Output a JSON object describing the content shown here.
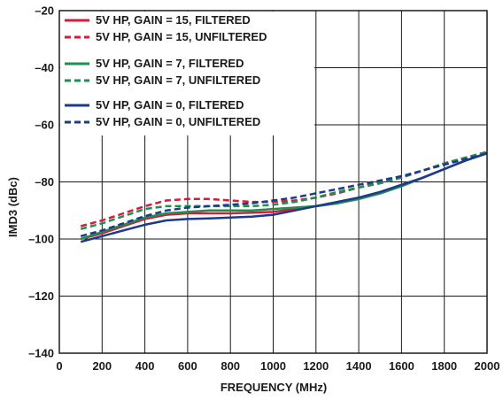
{
  "chart_data": {
    "type": "line",
    "xlabel": "FREQUENCY (MHz)",
    "ylabel": "IMD3 (dBc)",
    "xlim": [
      0,
      2000
    ],
    "ylim": [
      -140,
      -20
    ],
    "xticks": [
      0,
      200,
      400,
      600,
      800,
      1000,
      1200,
      1400,
      1600,
      1800,
      2000
    ],
    "yticks": [
      -20,
      -40,
      -60,
      -80,
      -100,
      -120,
      -140
    ],
    "grid": true,
    "legend_position": "top-left",
    "series": [
      {
        "name": "5V HP, GAIN = 15, FILTERED",
        "color": "#d7193a",
        "dashed": false,
        "x": [
          100,
          200,
          300,
          400,
          500,
          600,
          700,
          800,
          900,
          1000,
          1100,
          1200,
          1300,
          1400,
          1500,
          1600,
          1700,
          1800,
          1900,
          2000
        ],
        "y": [
          -100,
          -98,
          -95.5,
          -93,
          -91.5,
          -91,
          -91,
          -91,
          -90.8,
          -90.5,
          -89.5,
          -88.5,
          -87.5,
          -86,
          -84,
          -81.5,
          -78.5,
          -75.5,
          -72.5,
          -70
        ]
      },
      {
        "name": "5V HP, GAIN = 15, UNFILTERED",
        "color": "#d7193a",
        "dashed": true,
        "x": [
          100,
          200,
          300,
          400,
          500,
          600,
          700,
          800,
          900,
          1000,
          1100,
          1200,
          1300,
          1400,
          1500,
          1600,
          1700,
          1800,
          1900,
          2000
        ],
        "y": [
          -95.5,
          -93.5,
          -91,
          -88.5,
          -86.5,
          -86,
          -86,
          -86.5,
          -87,
          -87,
          -86.5,
          -85.5,
          -84,
          -82,
          -80,
          -78.5,
          -76,
          -73.5,
          -71.5,
          -69.5
        ]
      },
      {
        "name": "5V HP, GAIN = 7, FILTERED",
        "color": "#1e8f4e",
        "dashed": false,
        "x": [
          100,
          200,
          300,
          400,
          500,
          600,
          700,
          800,
          900,
          1000,
          1100,
          1200,
          1300,
          1400,
          1500,
          1600,
          1700,
          1800,
          1900,
          2000
        ],
        "y": [
          -100,
          -97.5,
          -95,
          -92.5,
          -91,
          -90.5,
          -90,
          -90,
          -90,
          -89.5,
          -89,
          -88.5,
          -87.5,
          -86,
          -84,
          -81.5,
          -78.5,
          -75.5,
          -72.5,
          -70
        ]
      },
      {
        "name": "5V HP, GAIN = 7, UNFILTERED",
        "color": "#1e8f4e",
        "dashed": true,
        "x": [
          100,
          200,
          300,
          400,
          500,
          600,
          700,
          800,
          900,
          1000,
          1100,
          1200,
          1300,
          1400,
          1500,
          1600,
          1700,
          1800,
          1900,
          2000
        ],
        "y": [
          -96.5,
          -94.5,
          -92,
          -89.5,
          -88.5,
          -88.5,
          -88.5,
          -88.5,
          -88.5,
          -88,
          -87,
          -85.5,
          -83.5,
          -82,
          -80.5,
          -78.5,
          -76,
          -73.5,
          -71.5,
          -69.5
        ]
      },
      {
        "name": "5V HP, GAIN = 0, FILTERED",
        "color": "#1c3a8c",
        "dashed": false,
        "x": [
          100,
          200,
          300,
          400,
          500,
          600,
          700,
          800,
          900,
          1000,
          1100,
          1200,
          1300,
          1400,
          1500,
          1600,
          1700,
          1800,
          1900,
          2000
        ],
        "y": [
          -101,
          -99,
          -97,
          -95,
          -93.5,
          -93,
          -92.8,
          -92.5,
          -92.2,
          -91.5,
          -90,
          -88.5,
          -87,
          -85.5,
          -83.5,
          -81,
          -78.5,
          -75.5,
          -72.5,
          -70
        ]
      },
      {
        "name": "5V HP, GAIN = 0, UNFILTERED",
        "color": "#1c3a8c",
        "dashed": true,
        "x": [
          100,
          200,
          300,
          400,
          500,
          600,
          700,
          800,
          900,
          1000,
          1100,
          1200,
          1300,
          1400,
          1500,
          1600,
          1700,
          1800,
          1900,
          2000
        ],
        "y": [
          -99,
          -97,
          -94.5,
          -92,
          -90,
          -89,
          -88.5,
          -88,
          -87.5,
          -86.5,
          -85.5,
          -84,
          -82.5,
          -81,
          -79.5,
          -78,
          -76,
          -74,
          -72,
          -70
        ]
      }
    ]
  }
}
